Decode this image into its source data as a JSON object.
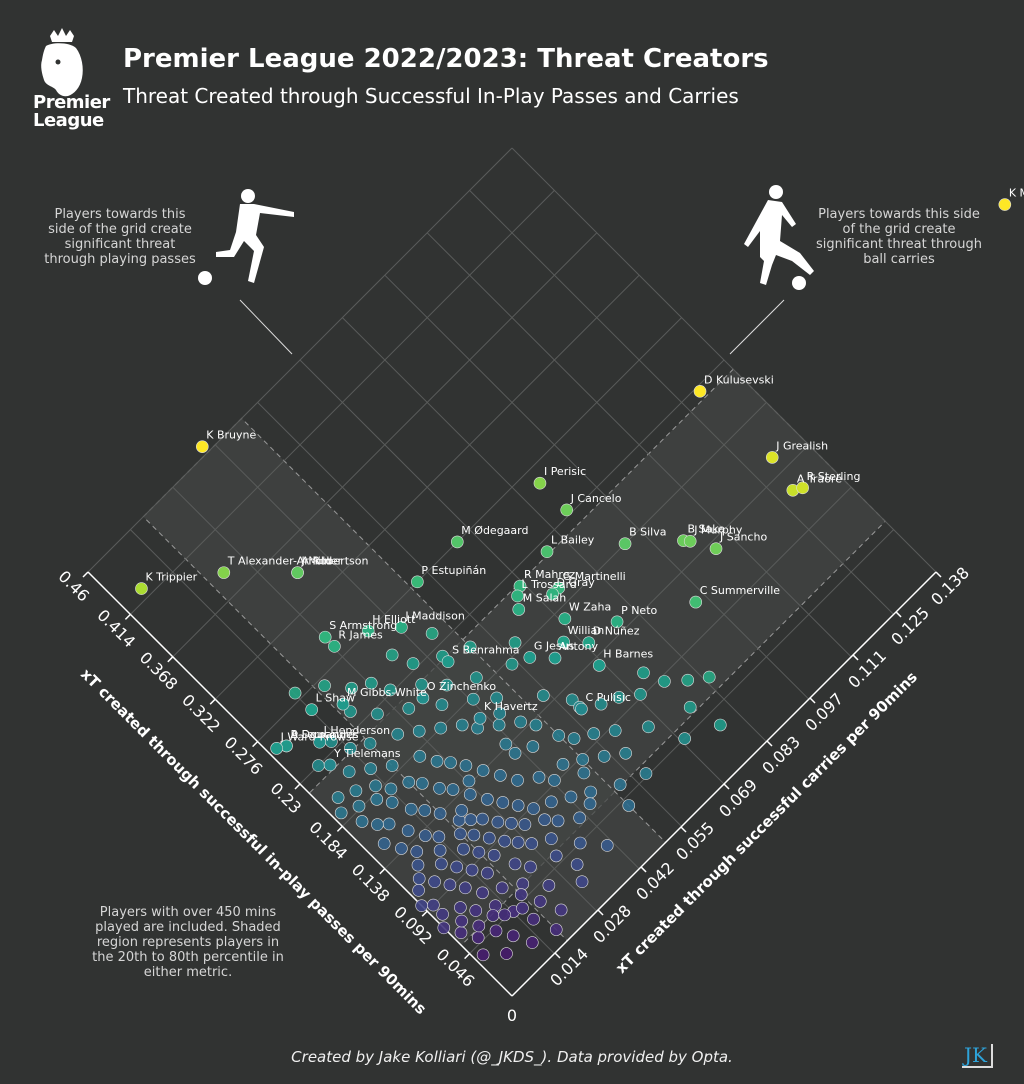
{
  "header": {
    "title": "Premier League 2022/2023: Threat Creators",
    "subtitle": "Threat Created through Successful In-Play Passes and Carries",
    "logo_text_line1": "Premier",
    "logo_text_line2": "League"
  },
  "notes": {
    "left": "Players towards this side of the grid create significant threat through playing passes",
    "right": "Players towards this side of the grid create significant threat through ball carries",
    "bottom": "Players with over 450 mins played are included. Shaded region represents players in the 20th to 80th percentile in either metric."
  },
  "footer": {
    "credit": "Created by Jake Kolliari (@_JKDS_). Data provided by Opta.",
    "badge": "JK"
  },
  "colors": {
    "background": "#313332",
    "grid": "#5a5c5b",
    "shade": "#434544"
  },
  "chart_data": {
    "type": "scatter",
    "origin_label": "0",
    "xlabel": "xT created through successful in-play passes per 90mins",
    "ylabel": "xT created through successful carries per 90mins",
    "pass_ticks": [
      0.046,
      0.092,
      0.138,
      0.184,
      0.23,
      0.276,
      0.322,
      0.368,
      0.414,
      0.46
    ],
    "pass_tick_labels": [
      "0.046",
      "0.092",
      "0.138",
      "0.184",
      "0.23",
      "0.276",
      "0.322",
      "0.368",
      "0.414",
      "0.46"
    ],
    "carry_ticks": [
      0.014,
      0.028,
      0.042,
      0.055,
      0.069,
      0.083,
      0.097,
      0.111,
      0.125,
      0.138
    ],
    "carry_tick_labels": [
      "0.014",
      "0.028",
      "0.042",
      "0.055",
      "0.069",
      "0.083",
      "0.097",
      "0.111",
      "0.125",
      "0.138"
    ],
    "pass_range": [
      0,
      0.46
    ],
    "carry_range": [
      0,
      0.138
    ],
    "shaded_percentile_bounds": {
      "pass": [
        0.055,
        0.22
      ],
      "carry": [
        0.018,
        0.05
      ]
    },
    "labelled_players": [
      {
        "name": "K Mitoma",
        "pass": 0.162,
        "carry": 0.209
      },
      {
        "name": "K Bruyne",
        "pass": 0.466,
        "carry": 0.039
      },
      {
        "name": "D Kulusevski",
        "pass": 0.226,
        "carry": 0.129
      },
      {
        "name": "I Perisic",
        "pass": 0.263,
        "carry": 0.088
      },
      {
        "name": "J Grealish",
        "pass": 0.151,
        "carry": 0.13
      },
      {
        "name": "A Traoré",
        "pass": 0.122,
        "carry": 0.128
      },
      {
        "name": "R Sterling",
        "pass": 0.118,
        "carry": 0.13
      },
      {
        "name": "J Cancelo",
        "pass": 0.234,
        "carry": 0.088
      },
      {
        "name": "M Ødegaard",
        "pass": 0.276,
        "carry": 0.065
      },
      {
        "name": "L Bailey",
        "pass": 0.222,
        "carry": 0.078
      },
      {
        "name": "B Silva",
        "pass": 0.184,
        "carry": 0.092
      },
      {
        "name": "B Saka",
        "pass": 0.154,
        "carry": 0.102
      },
      {
        "name": "J Murphy",
        "pass": 0.15,
        "carry": 0.103
      },
      {
        "name": "J Sancho",
        "pass": 0.132,
        "carry": 0.106
      },
      {
        "name": "T Alexander-Arnold",
        "pass": 0.386,
        "carry": 0.022
      },
      {
        "name": "A Robertson",
        "pass": 0.346,
        "carry": 0.034
      },
      {
        "name": "J Milner",
        "pass": 0.346,
        "carry": 0.034
      },
      {
        "name": "R Mahrez",
        "pass": 0.218,
        "carry": 0.068
      },
      {
        "name": "P Estupiñán",
        "pass": 0.276,
        "carry": 0.052
      },
      {
        "name": "G Martinelli",
        "pass": 0.196,
        "carry": 0.074
      },
      {
        "name": "L Trossard",
        "pass": 0.214,
        "carry": 0.066
      },
      {
        "name": "D Gray",
        "pass": 0.196,
        "carry": 0.072
      },
      {
        "name": "M Salah",
        "pass": 0.206,
        "carry": 0.064
      },
      {
        "name": "C Summerville",
        "pass": 0.114,
        "carry": 0.094
      },
      {
        "name": "K Trippier",
        "pass": 0.422,
        "carry": 0.006
      },
      {
        "name": "S Armstrong",
        "pass": 0.296,
        "carry": 0.028
      },
      {
        "name": "H Elliott",
        "pass": 0.276,
        "carry": 0.036
      },
      {
        "name": "J Maddison",
        "pass": 0.26,
        "carry": 0.042
      },
      {
        "name": "R James",
        "pass": 0.286,
        "carry": 0.028
      },
      {
        "name": "W Zaha",
        "pass": 0.176,
        "carry": 0.07
      },
      {
        "name": "P Neto",
        "pass": 0.146,
        "carry": 0.078
      },
      {
        "name": "S Benrahma",
        "pass": 0.216,
        "carry": 0.044
      },
      {
        "name": "Willian",
        "pass": 0.164,
        "carry": 0.066
      },
      {
        "name": "D Núñez",
        "pass": 0.15,
        "carry": 0.07
      },
      {
        "name": "G Jesus",
        "pass": 0.174,
        "carry": 0.058
      },
      {
        "name": "Antony",
        "pass": 0.16,
        "carry": 0.062
      },
      {
        "name": "H Barnes",
        "pass": 0.132,
        "carry": 0.068
      },
      {
        "name": "M Gibbs-White",
        "pass": 0.25,
        "carry": 0.02
      },
      {
        "name": "L Shaw",
        "pass": 0.264,
        "carry": 0.014
      },
      {
        "name": "O Zinchenko",
        "pass": 0.21,
        "carry": 0.034
      },
      {
        "name": "K Havertz",
        "pass": 0.168,
        "carry": 0.04
      },
      {
        "name": "C Pulisic",
        "pass": 0.118,
        "carry": 0.058
      },
      {
        "name": "J Henderson",
        "pass": 0.242,
        "carry": 0.01
      },
      {
        "name": "B Fernandes",
        "pass": 0.258,
        "carry": 0.004
      },
      {
        "name": "A Doucouré",
        "pass": 0.258,
        "carry": 0.004
      },
      {
        "name": "Y Tielemans",
        "pass": 0.224,
        "carry": 0.008
      },
      {
        "name": "J Ward-Prowse",
        "pass": 0.262,
        "carry": 0.002
      }
    ],
    "other_players": [
      {
        "pass": 0.055,
        "carry": 0.02
      },
      {
        "pass": 0.06,
        "carry": 0.024
      },
      {
        "pass": 0.05,
        "carry": 0.018
      },
      {
        "pass": 0.064,
        "carry": 0.016
      },
      {
        "pass": 0.07,
        "carry": 0.022
      },
      {
        "pass": 0.045,
        "carry": 0.014
      },
      {
        "pass": 0.058,
        "carry": 0.012
      },
      {
        "pass": 0.072,
        "carry": 0.012
      },
      {
        "pass": 0.08,
        "carry": 0.016
      },
      {
        "pass": 0.066,
        "carry": 0.008
      },
      {
        "pass": 0.076,
        "carry": 0.006
      },
      {
        "pass": 0.084,
        "carry": 0.01
      },
      {
        "pass": 0.09,
        "carry": 0.014
      },
      {
        "pass": 0.086,
        "carry": 0.02
      },
      {
        "pass": 0.094,
        "carry": 0.008
      },
      {
        "pass": 0.1,
        "carry": 0.012
      },
      {
        "pass": 0.096,
        "carry": 0.018
      },
      {
        "pass": 0.104,
        "carry": 0.006
      },
      {
        "pass": 0.11,
        "carry": 0.01
      },
      {
        "pass": 0.106,
        "carry": 0.016
      },
      {
        "pass": 0.114,
        "carry": 0.004
      },
      {
        "pass": 0.118,
        "carry": 0.012
      },
      {
        "pass": 0.122,
        "carry": 0.006
      },
      {
        "pass": 0.126,
        "carry": 0.014
      },
      {
        "pass": 0.13,
        "carry": 0.008
      },
      {
        "pass": 0.072,
        "carry": 0.028
      },
      {
        "pass": 0.064,
        "carry": 0.032
      },
      {
        "pass": 0.08,
        "carry": 0.026
      },
      {
        "pass": 0.088,
        "carry": 0.024
      },
      {
        "pass": 0.098,
        "carry": 0.022
      },
      {
        "pass": 0.108,
        "carry": 0.02
      },
      {
        "pass": 0.116,
        "carry": 0.018
      },
      {
        "pass": 0.124,
        "carry": 0.02
      },
      {
        "pass": 0.134,
        "carry": 0.012
      },
      {
        "pass": 0.14,
        "carry": 0.006
      },
      {
        "pass": 0.146,
        "carry": 0.01
      },
      {
        "pass": 0.152,
        "carry": 0.004
      },
      {
        "pass": 0.138,
        "carry": 0.018
      },
      {
        "pass": 0.148,
        "carry": 0.016
      },
      {
        "pass": 0.16,
        "carry": 0.008
      },
      {
        "pass": 0.156,
        "carry": 0.014
      },
      {
        "pass": 0.166,
        "carry": 0.006
      },
      {
        "pass": 0.17,
        "carry": 0.012
      },
      {
        "pass": 0.176,
        "carry": 0.004
      },
      {
        "pass": 0.18,
        "carry": 0.01
      },
      {
        "pass": 0.186,
        "carry": 0.006
      },
      {
        "pass": 0.192,
        "carry": 0.002
      },
      {
        "pass": 0.196,
        "carry": 0.008
      },
      {
        "pass": 0.202,
        "carry": 0.004
      },
      {
        "pass": 0.164,
        "carry": 0.02
      },
      {
        "pass": 0.172,
        "carry": 0.018
      },
      {
        "pass": 0.144,
        "carry": 0.024
      },
      {
        "pass": 0.132,
        "carry": 0.026
      },
      {
        "pass": 0.12,
        "carry": 0.028
      },
      {
        "pass": 0.11,
        "carry": 0.03
      },
      {
        "pass": 0.1,
        "carry": 0.032
      },
      {
        "pass": 0.09,
        "carry": 0.034
      },
      {
        "pass": 0.084,
        "carry": 0.038
      },
      {
        "pass": 0.076,
        "carry": 0.042
      },
      {
        "pass": 0.068,
        "carry": 0.046
      },
      {
        "pass": 0.094,
        "carry": 0.042
      },
      {
        "pass": 0.104,
        "carry": 0.04
      },
      {
        "pass": 0.114,
        "carry": 0.036
      },
      {
        "pass": 0.126,
        "carry": 0.034
      },
      {
        "pass": 0.138,
        "carry": 0.032
      },
      {
        "pass": 0.15,
        "carry": 0.03
      },
      {
        "pass": 0.16,
        "carry": 0.028
      },
      {
        "pass": 0.18,
        "carry": 0.024
      },
      {
        "pass": 0.19,
        "carry": 0.018
      },
      {
        "pass": 0.2,
        "carry": 0.014
      },
      {
        "pass": 0.21,
        "carry": 0.01
      },
      {
        "pass": 0.214,
        "carry": 0.018
      },
      {
        "pass": 0.222,
        "carry": 0.014
      },
      {
        "pass": 0.23,
        "carry": 0.006
      },
      {
        "pass": 0.236,
        "carry": 0.012
      },
      {
        "pass": 0.204,
        "carry": 0.024
      },
      {
        "pass": 0.194,
        "carry": 0.028
      },
      {
        "pass": 0.184,
        "carry": 0.032
      },
      {
        "pass": 0.174,
        "carry": 0.036
      },
      {
        "pass": 0.164,
        "carry": 0.038
      },
      {
        "pass": 0.154,
        "carry": 0.042
      },
      {
        "pass": 0.144,
        "carry": 0.046
      },
      {
        "pass": 0.134,
        "carry": 0.048
      },
      {
        "pass": 0.124,
        "carry": 0.044
      },
      {
        "pass": 0.116,
        "carry": 0.05
      },
      {
        "pass": 0.106,
        "carry": 0.052
      },
      {
        "pass": 0.098,
        "carry": 0.056
      },
      {
        "pass": 0.088,
        "carry": 0.06
      },
      {
        "pass": 0.08,
        "carry": 0.054
      },
      {
        "pass": 0.072,
        "carry": 0.066
      },
      {
        "pass": 0.11,
        "carry": 0.062
      },
      {
        "pass": 0.128,
        "carry": 0.058
      },
      {
        "pass": 0.146,
        "carry": 0.054
      },
      {
        "pass": 0.196,
        "carry": 0.036
      },
      {
        "pass": 0.212,
        "carry": 0.03
      },
      {
        "pass": 0.226,
        "carry": 0.024
      },
      {
        "pass": 0.242,
        "carry": 0.02
      },
      {
        "pass": 0.06,
        "carry": 0.04
      },
      {
        "pass": 0.052,
        "carry": 0.03
      },
      {
        "pass": 0.04,
        "carry": 0.024
      },
      {
        "pass": 0.036,
        "carry": 0.032
      },
      {
        "pass": 0.03,
        "carry": 0.04
      },
      {
        "pass": 0.046,
        "carry": 0.036
      },
      {
        "pass": 0.04,
        "carry": 0.05
      },
      {
        "pass": 0.024,
        "carry": 0.03
      },
      {
        "pass": 0.03,
        "carry": 0.016
      },
      {
        "pass": 0.02,
        "carry": 0.022
      },
      {
        "pass": 0.032,
        "carry": 0.01
      },
      {
        "pass": 0.044,
        "carry": 0.008
      },
      {
        "pass": 0.05,
        "carry": 0.004
      },
      {
        "pass": 0.038,
        "carry": 0.002
      },
      {
        "pass": 0.026,
        "carry": 0.006
      },
      {
        "pass": 0.018,
        "carry": 0.012
      },
      {
        "pass": 0.012,
        "carry": 0.018
      },
      {
        "pass": 0.056,
        "carry": 0.006
      },
      {
        "pass": 0.062,
        "carry": 0.002
      },
      {
        "pass": 0.068,
        "carry": 0.004
      },
      {
        "pass": 0.074,
        "carry": 0.0
      },
      {
        "pass": 0.082,
        "carry": 0.002
      },
      {
        "pass": 0.092,
        "carry": 0.002
      },
      {
        "pass": 0.098,
        "carry": 0.0
      },
      {
        "pass": 0.108,
        "carry": 0.002
      },
      {
        "pass": 0.054,
        "carry": 0.01
      },
      {
        "pass": 0.048,
        "carry": 0.012
      },
      {
        "pass": 0.042,
        "carry": 0.016
      },
      {
        "pass": 0.036,
        "carry": 0.02
      },
      {
        "pass": 0.062,
        "carry": 0.044
      },
      {
        "pass": 0.056,
        "carry": 0.052
      },
      {
        "pass": 0.048,
        "carry": 0.058
      },
      {
        "pass": 0.07,
        "carry": 0.036
      },
      {
        "pass": 0.078,
        "carry": 0.034
      },
      {
        "pass": 0.086,
        "carry": 0.03
      },
      {
        "pass": 0.094,
        "carry": 0.028
      },
      {
        "pass": 0.102,
        "carry": 0.026
      },
      {
        "pass": 0.112,
        "carry": 0.024
      },
      {
        "pass": 0.118,
        "carry": 0.022
      },
      {
        "pass": 0.128,
        "carry": 0.022
      },
      {
        "pass": 0.14,
        "carry": 0.028
      },
      {
        "pass": 0.152,
        "carry": 0.022
      },
      {
        "pass": 0.168,
        "carry": 0.026
      },
      {
        "pass": 0.178,
        "carry": 0.014
      },
      {
        "pass": 0.188,
        "carry": 0.012
      },
      {
        "pass": 0.098,
        "carry": 0.046
      },
      {
        "pass": 0.09,
        "carry": 0.05
      },
      {
        "pass": 0.082,
        "carry": 0.048
      },
      {
        "pass": 0.14,
        "carry": 0.04
      },
      {
        "pass": 0.13,
        "carry": 0.04
      },
      {
        "pass": 0.12,
        "carry": 0.058
      },
      {
        "pass": 0.104,
        "carry": 0.066
      },
      {
        "pass": 0.094,
        "carry": 0.07
      },
      {
        "pass": 0.088,
        "carry": 0.076
      },
      {
        "pass": 0.16,
        "carry": 0.044
      },
      {
        "pass": 0.17,
        "carry": 0.046
      },
      {
        "pass": 0.182,
        "carry": 0.042
      },
      {
        "pass": 0.192,
        "carry": 0.046
      },
      {
        "pass": 0.204,
        "carry": 0.04
      },
      {
        "pass": 0.218,
        "carry": 0.036
      },
      {
        "pass": 0.232,
        "carry": 0.03
      },
      {
        "pass": 0.246,
        "carry": 0.028
      },
      {
        "pass": 0.254,
        "carry": 0.024
      },
      {
        "pass": 0.27,
        "carry": 0.02
      },
      {
        "pass": 0.282,
        "carry": 0.014
      },
      {
        "pass": 0.234,
        "carry": 0.038
      },
      {
        "pass": 0.222,
        "carry": 0.044
      },
      {
        "pass": 0.212,
        "carry": 0.05
      },
      {
        "pass": 0.24,
        "carry": 0.046
      },
      {
        "pass": 0.25,
        "carry": 0.036
      },
      {
        "pass": 0.18,
        "carry": 0.054
      },
      {
        "pass": 0.19,
        "carry": 0.058
      },
      {
        "pass": 0.076,
        "carry": 0.08
      },
      {
        "pass": 0.066,
        "carry": 0.084
      },
      {
        "pass": 0.06,
        "carry": 0.076
      },
      {
        "pass": 0.104,
        "carry": 0.074
      },
      {
        "pass": 0.07,
        "carry": 0.058
      },
      {
        "pass": 0.046,
        "carry": 0.07
      },
      {
        "pass": 0.034,
        "carry": 0.078
      }
    ]
  }
}
